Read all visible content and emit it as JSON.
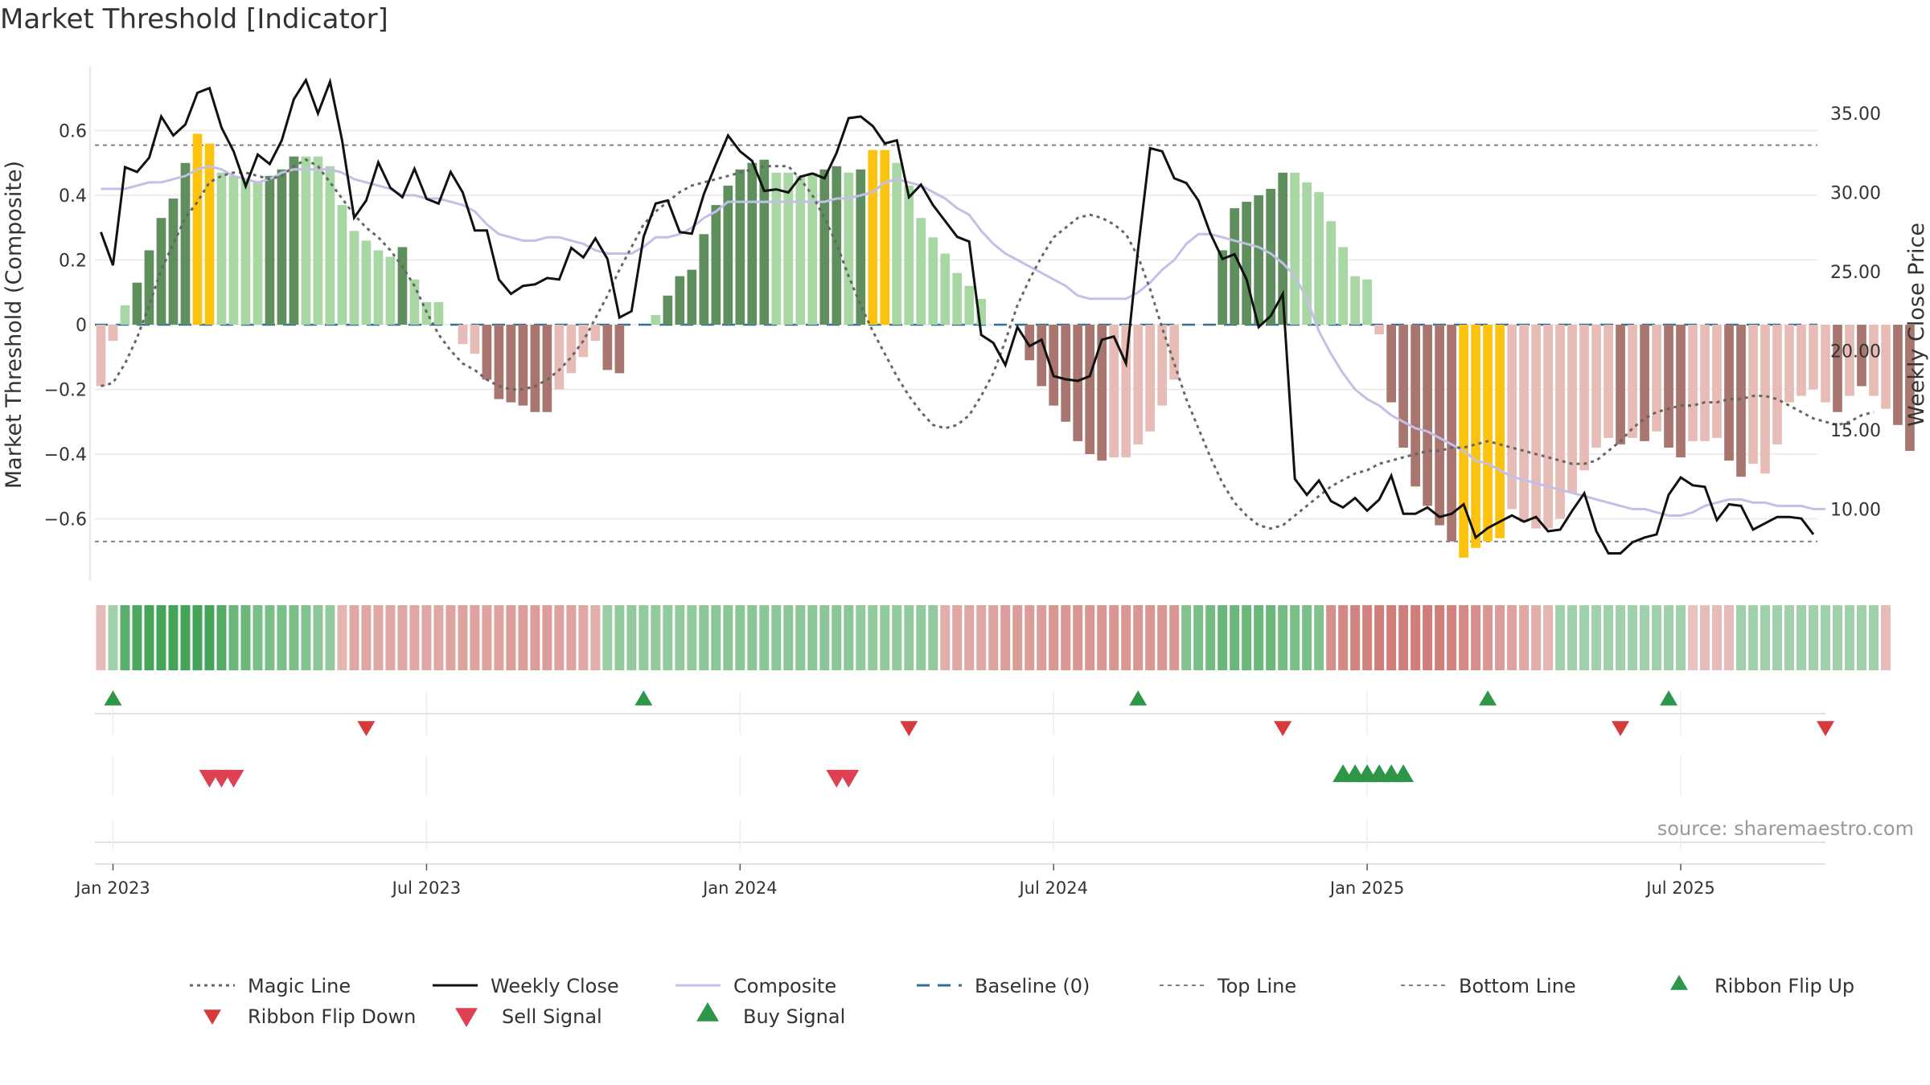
{
  "chart_data": {
    "type": "bar",
    "title": "Market Threshold [Indicator]",
    "ylabel_left": "Market Threshold (Composite)",
    "ylabel_right": "Weekly Close Price",
    "source": "source: sharemaestro.com",
    "left_ylim": [
      -0.79,
      0.8
    ],
    "right_ylim": [
      5.5,
      38.0
    ],
    "left_ticks": [
      {
        "v": 0.6,
        "label": "0.6"
      },
      {
        "v": 0.4,
        "label": "0.4"
      },
      {
        "v": 0.2,
        "label": "0.2"
      },
      {
        "v": 0,
        "label": "0"
      },
      {
        "v": -0.2,
        "label": "−0.2"
      },
      {
        "v": -0.4,
        "label": "−0.4"
      },
      {
        "v": -0.6,
        "label": "−0.6"
      }
    ],
    "right_ticks": [
      {
        "v": 35,
        "label": "35.00"
      },
      {
        "v": 30,
        "label": "30.00"
      },
      {
        "v": 25,
        "label": "25.00"
      },
      {
        "v": 20,
        "label": "20.00"
      },
      {
        "v": 15,
        "label": "15.00"
      },
      {
        "v": 10,
        "label": "10.00"
      }
    ],
    "x_ticks": [
      {
        "week": 1,
        "label": "Jan 2023"
      },
      {
        "week": 27,
        "label": "Jul 2023"
      },
      {
        "week": 53,
        "label": "Jan 2024"
      },
      {
        "week": 79,
        "label": "Jul 2024"
      },
      {
        "week": 105,
        "label": "Jan 2025"
      },
      {
        "week": 131,
        "label": "Jul 2025"
      }
    ],
    "x_range": [
      -0.5,
      143
    ],
    "top_line": 0.555,
    "bottom_line": -0.67,
    "baseline": 0,
    "composite_bars": [
      -0.19,
      -0.05,
      0.06,
      0.13,
      0.23,
      0.33,
      0.39,
      0.5,
      0.59,
      0.56,
      0.47,
      0.46,
      0.45,
      0.44,
      0.46,
      0.48,
      0.52,
      0.52,
      0.52,
      0.49,
      0.37,
      0.29,
      0.26,
      0.23,
      0.21,
      0.24,
      0.14,
      0.07,
      0.07,
      0,
      -0.06,
      -0.09,
      -0.17,
      -0.23,
      -0.24,
      -0.25,
      -0.27,
      -0.27,
      -0.2,
      -0.15,
      -0.1,
      -0.05,
      -0.14,
      -0.15,
      0,
      0,
      0.03,
      0.09,
      0.15,
      0.17,
      0.28,
      0.37,
      0.43,
      0.48,
      0.5,
      0.51,
      0.47,
      0.47,
      0.46,
      0.47,
      0.48,
      0.49,
      0.47,
      0.48,
      0.54,
      0.54,
      0.5,
      0.43,
      0.33,
      0.27,
      0.22,
      0.16,
      0.12,
      0.08,
      0,
      0,
      0,
      -0.11,
      -0.19,
      -0.25,
      -0.3,
      -0.36,
      -0.4,
      -0.42,
      -0.41,
      -0.41,
      -0.37,
      -0.33,
      -0.25,
      -0.17,
      0,
      0,
      0,
      0.23,
      0.36,
      0.38,
      0.4,
      0.42,
      0.47,
      0.47,
      0.44,
      0.41,
      0.32,
      0.24,
      0.15,
      0.14,
      -0.03,
      -0.24,
      -0.38,
      -0.5,
      -0.56,
      -0.62,
      -0.67,
      -0.72,
      -0.69,
      -0.67,
      -0.66,
      -0.57,
      -0.61,
      -0.63,
      -0.63,
      -0.6,
      -0.52,
      -0.45,
      -0.38,
      -0.35,
      -0.37,
      -0.35,
      -0.36,
      -0.33,
      -0.38,
      -0.41,
      -0.36,
      -0.36,
      -0.35,
      -0.42,
      -0.47,
      -0.43,
      -0.46,
      -0.37,
      -0.24,
      -0.22,
      -0.2,
      -0.24,
      -0.27,
      -0.22,
      -0.19,
      -0.22,
      -0.26,
      -0.31,
      -0.39
    ],
    "bar_classes": [
      "neg-light",
      "neg-light",
      "pos-light",
      "pos-dark",
      "pos-dark",
      "pos-dark",
      "pos-dark",
      "pos-dark",
      "extreme",
      "extreme",
      "pos-light",
      "pos-light",
      "pos-light",
      "pos-light",
      "pos-dark",
      "pos-dark",
      "pos-dark",
      "pos-light",
      "pos-light",
      "pos-light",
      "pos-light",
      "pos-light",
      "pos-light",
      "pos-light",
      "pos-light",
      "pos-dark",
      "pos-light",
      "pos-light",
      "pos-light",
      "none",
      "neg-light",
      "neg-light",
      "neg-dark",
      "neg-dark",
      "neg-dark",
      "neg-dark",
      "neg-dark",
      "neg-dark",
      "neg-light",
      "neg-light",
      "neg-light",
      "neg-light",
      "neg-dark",
      "neg-dark",
      "none",
      "none",
      "pos-light",
      "pos-dark",
      "pos-dark",
      "pos-dark",
      "pos-dark",
      "pos-dark",
      "pos-dark",
      "pos-dark",
      "pos-dark",
      "pos-dark",
      "pos-light",
      "pos-light",
      "pos-light",
      "pos-light",
      "pos-dark",
      "pos-dark",
      "pos-light",
      "pos-dark",
      "extreme",
      "extreme",
      "pos-light",
      "pos-light",
      "pos-light",
      "pos-light",
      "pos-light",
      "pos-light",
      "pos-light",
      "pos-light",
      "none",
      "none",
      "none",
      "neg-dark",
      "neg-dark",
      "neg-dark",
      "neg-dark",
      "neg-dark",
      "neg-dark",
      "neg-dark",
      "neg-light",
      "neg-light",
      "neg-light",
      "neg-light",
      "neg-light",
      "neg-light",
      "none",
      "none",
      "none",
      "pos-dark",
      "pos-dark",
      "pos-dark",
      "pos-dark",
      "pos-dark",
      "pos-dark",
      "pos-light",
      "pos-light",
      "pos-light",
      "pos-light",
      "pos-light",
      "pos-light",
      "pos-light",
      "neg-light",
      "neg-dark",
      "neg-dark",
      "neg-dark",
      "neg-dark",
      "neg-dark",
      "neg-dark",
      "extreme",
      "extreme",
      "extreme",
      "extreme",
      "neg-light",
      "neg-light",
      "neg-light",
      "neg-light",
      "neg-light",
      "neg-light",
      "neg-light",
      "neg-light",
      "neg-light",
      "neg-dark",
      "neg-light",
      "neg-dark",
      "neg-light",
      "neg-dark",
      "neg-dark",
      "neg-light",
      "neg-light",
      "neg-light",
      "neg-dark",
      "neg-dark",
      "neg-light",
      "neg-light",
      "neg-light",
      "neg-light",
      "neg-light",
      "neg-light",
      "neg-light",
      "neg-dark",
      "neg-light",
      "neg-dark",
      "neg-light",
      "neg-light",
      "neg-dark",
      "neg-dark"
    ],
    "weekly_close": [
      27.5,
      25.4,
      31.6,
      31.3,
      32.2,
      34.8,
      33.6,
      34.3,
      36.3,
      36.6,
      34.1,
      32.6,
      30.4,
      32.4,
      31.8,
      33.3,
      35.9,
      37.1,
      35,
      37.0,
      33.3,
      28.4,
      29.5,
      31.9,
      30.3,
      29.7,
      31.5,
      29.6,
      29.3,
      31.3,
      30.0,
      27.6,
      27.6,
      24.5,
      23.6,
      24.1,
      24.2,
      24.6,
      24.5,
      26.5,
      25.9,
      27.1,
      25.8,
      22.1,
      22.5,
      27.2,
      29.3,
      29.5,
      27.5,
      27.4,
      29.9,
      31.8,
      33.6,
      32.6,
      32.0,
      30.1,
      30.2,
      30.0,
      31.0,
      31.2,
      30.9,
      32.5,
      34.7,
      34.8,
      34.2,
      33.1,
      33.3,
      29.7,
      30.5,
      29.2,
      28.2,
      27.2,
      26.9,
      21.0,
      20.5,
      19.1,
      21.5,
      20.3,
      20.7,
      18.4,
      18.2,
      18.1,
      18.4,
      20.7,
      20.9,
      19.2,
      26.4,
      32.8,
      32.6,
      30.9,
      30.6,
      29.5,
      27.4,
      25.8,
      26.1,
      24.5,
      21.5,
      22.2,
      23.6,
      11.9,
      10.9,
      11.8,
      10.5,
      10.1,
      10.7,
      9.9,
      10.6,
      12.1,
      9.7,
      9.7,
      10.1,
      9.5,
      9.7,
      10.3,
      8.2,
      8.8,
      9.2,
      9.6,
      9.2,
      9.5,
      8.6,
      8.7,
      9.9,
      11.0,
      8.6,
      7.2,
      7.2,
      7.9,
      8.2,
      8.4,
      10.9,
      12.0,
      11.5,
      11.4,
      9.3,
      10.3,
      10.2,
      8.7,
      9.1,
      9.5,
      9.5,
      9.4,
      8.4
    ],
    "composite_line": [
      0.42,
      0.42,
      0.42,
      0.43,
      0.44,
      0.44,
      0.45,
      0.46,
      0.48,
      0.49,
      0.48,
      0.46,
      0.45,
      0.44,
      0.45,
      0.47,
      0.48,
      0.48,
      0.48,
      0.48,
      0.47,
      0.45,
      0.44,
      0.43,
      0.42,
      0.4,
      0.4,
      0.39,
      0.39,
      0.38,
      0.37,
      0.35,
      0.31,
      0.28,
      0.27,
      0.26,
      0.26,
      0.27,
      0.27,
      0.26,
      0.25,
      0.23,
      0.22,
      0.22,
      0.22,
      0.24,
      0.27,
      0.27,
      0.28,
      0.3,
      0.33,
      0.35,
      0.38,
      0.38,
      0.38,
      0.38,
      0.38,
      0.38,
      0.38,
      0.38,
      0.38,
      0.39,
      0.39,
      0.4,
      0.41,
      0.44,
      0.45,
      0.44,
      0.43,
      0.41,
      0.39,
      0.36,
      0.34,
      0.29,
      0.25,
      0.22,
      0.2,
      0.18,
      0.16,
      0.14,
      0.12,
      0.09,
      0.08,
      0.08,
      0.08,
      0.08,
      0.1,
      0.13,
      0.17,
      0.2,
      0.25,
      0.28,
      0.28,
      0.27,
      0.26,
      0.25,
      0.24,
      0.22,
      0.19,
      0.15,
      0.08,
      -0.02,
      -0.09,
      -0.15,
      -0.2,
      -0.23,
      -0.25,
      -0.28,
      -0.3,
      -0.32,
      -0.33,
      -0.35,
      -0.37,
      -0.39,
      -0.42,
      -0.43,
      -0.45,
      -0.47,
      -0.48,
      -0.49,
      -0.5,
      -0.51,
      -0.52,
      -0.53,
      -0.54,
      -0.55,
      -0.56,
      -0.57,
      -0.57,
      -0.58,
      -0.59,
      -0.59,
      -0.58,
      -0.56,
      -0.55,
      -0.54,
      -0.54,
      -0.55,
      -0.55,
      -0.56,
      -0.56,
      -0.56,
      -0.57,
      -0.57
    ],
    "magic_line": [
      -0.19,
      -0.18,
      -0.12,
      -0.04,
      0.06,
      0.17,
      0.25,
      0.33,
      0.38,
      0.44,
      0.46,
      0.47,
      0.47,
      0.46,
      0.45,
      0.46,
      0.49,
      0.51,
      0.49,
      0.44,
      0.39,
      0.34,
      0.3,
      0.27,
      0.23,
      0.18,
      0.12,
      0.04,
      -0.03,
      -0.08,
      -0.12,
      -0.14,
      -0.17,
      -0.19,
      -0.2,
      -0.2,
      -0.19,
      -0.17,
      -0.14,
      -0.1,
      -0.05,
      0.02,
      0.09,
      0.17,
      0.24,
      0.31,
      0.35,
      0.38,
      0.41,
      0.43,
      0.44,
      0.45,
      0.46,
      0.47,
      0.48,
      0.49,
      0.49,
      0.49,
      0.45,
      0.4,
      0.33,
      0.25,
      0.15,
      0.06,
      -0.02,
      -0.09,
      -0.16,
      -0.22,
      -0.27,
      -0.31,
      -0.32,
      -0.31,
      -0.28,
      -0.22,
      -0.15,
      -0.05,
      0.06,
      0.14,
      0.21,
      0.27,
      0.3,
      0.33,
      0.34,
      0.33,
      0.31,
      0.28,
      0.21,
      0.11,
      -0.01,
      -0.12,
      -0.23,
      -0.32,
      -0.41,
      -0.49,
      -0.55,
      -0.59,
      -0.62,
      -0.63,
      -0.62,
      -0.59,
      -0.56,
      -0.53,
      -0.5,
      -0.48,
      -0.46,
      -0.45,
      -0.43,
      -0.42,
      -0.41,
      -0.4,
      -0.39,
      -0.39,
      -0.38,
      -0.38,
      -0.37,
      -0.36,
      -0.37,
      -0.38,
      -0.39,
      -0.4,
      -0.41,
      -0.42,
      -0.43,
      -0.43,
      -0.42,
      -0.39,
      -0.36,
      -0.32,
      -0.29,
      -0.27,
      -0.26,
      -0.25,
      -0.25,
      -0.24,
      -0.24,
      -0.23,
      -0.23,
      -0.22,
      -0.22,
      -0.23,
      -0.25,
      -0.27,
      -0.29,
      -0.3,
      -0.31,
      -0.3,
      -0.28,
      -0.27
    ],
    "ribbon": [
      -0.3,
      0.35,
      0.8,
      0.9,
      0.95,
      0.95,
      0.95,
      0.95,
      0.95,
      0.95,
      0.85,
      0.7,
      0.7,
      0.6,
      0.6,
      0.6,
      0.6,
      0.55,
      0.5,
      0.45,
      -0.35,
      -0.45,
      -0.45,
      -0.45,
      -0.45,
      -0.45,
      -0.45,
      -0.45,
      -0.45,
      -0.5,
      -0.5,
      -0.5,
      -0.5,
      -0.5,
      -0.55,
      -0.55,
      -0.55,
      -0.55,
      -0.5,
      -0.5,
      -0.45,
      -0.4,
      0.4,
      0.45,
      0.45,
      0.45,
      0.45,
      0.45,
      0.45,
      0.45,
      0.5,
      0.5,
      0.5,
      0.5,
      0.5,
      0.5,
      0.5,
      0.5,
      0.5,
      0.5,
      0.5,
      0.5,
      0.5,
      0.45,
      0.45,
      0.45,
      0.45,
      0.45,
      0.45,
      0.45,
      -0.4,
      -0.45,
      -0.45,
      -0.45,
      -0.5,
      -0.55,
      -0.55,
      -0.55,
      -0.55,
      -0.6,
      -0.6,
      -0.6,
      -0.6,
      -0.6,
      -0.6,
      -0.6,
      -0.6,
      -0.6,
      -0.6,
      -0.6,
      0.55,
      0.6,
      0.65,
      0.7,
      0.7,
      0.7,
      0.7,
      0.7,
      0.65,
      0.6,
      0.6,
      0.55,
      -0.65,
      -0.7,
      -0.75,
      -0.75,
      -0.8,
      -0.8,
      -0.8,
      -0.8,
      -0.8,
      -0.8,
      -0.75,
      -0.7,
      -0.65,
      -0.6,
      -0.55,
      -0.5,
      -0.45,
      -0.4,
      -0.35,
      0.35,
      0.35,
      0.35,
      0.35,
      0.35,
      0.35,
      0.35,
      0.35,
      0.35,
      0.35,
      0.35,
      -0.25,
      -0.3,
      -0.3,
      -0.3,
      0.35,
      0.35,
      0.35,
      0.35,
      0.35,
      0.35,
      0.35,
      0.35,
      0.35,
      0.35,
      0.35,
      0.35,
      -0.3
    ],
    "ribbon_flip_up": [
      1,
      45,
      86,
      115,
      130
    ],
    "ribbon_flip_down": [
      22,
      67,
      98,
      126,
      143
    ],
    "sell_signals": [
      9,
      10,
      11,
      61,
      62
    ],
    "buy_signals": [
      103,
      104,
      105,
      106,
      107,
      108
    ],
    "legend": [
      "Magic Line",
      "Weekly Close",
      "Composite",
      "Baseline (0)",
      "Top Line",
      "Bottom Line",
      "Ribbon Flip Up",
      "Ribbon Flip Down",
      "Sell Signal",
      "Buy Signal"
    ],
    "colors": {
      "pos_dark": "#5f8f5c",
      "pos_light": "#a8d7a4",
      "neg_dark": "#a8766f",
      "neg_light": "#e8bcb6",
      "extreme": "#fcc30e",
      "weekly_close": "#111111",
      "composite": "#c3bfe6",
      "magic": "#666666",
      "baseline": "#2e7099",
      "ref_line": "#808080",
      "up_marker": "#2e9648",
      "down_marker": "#d63a3a",
      "sell_marker": "#de4252",
      "grid": "#e8e8e8"
    }
  }
}
